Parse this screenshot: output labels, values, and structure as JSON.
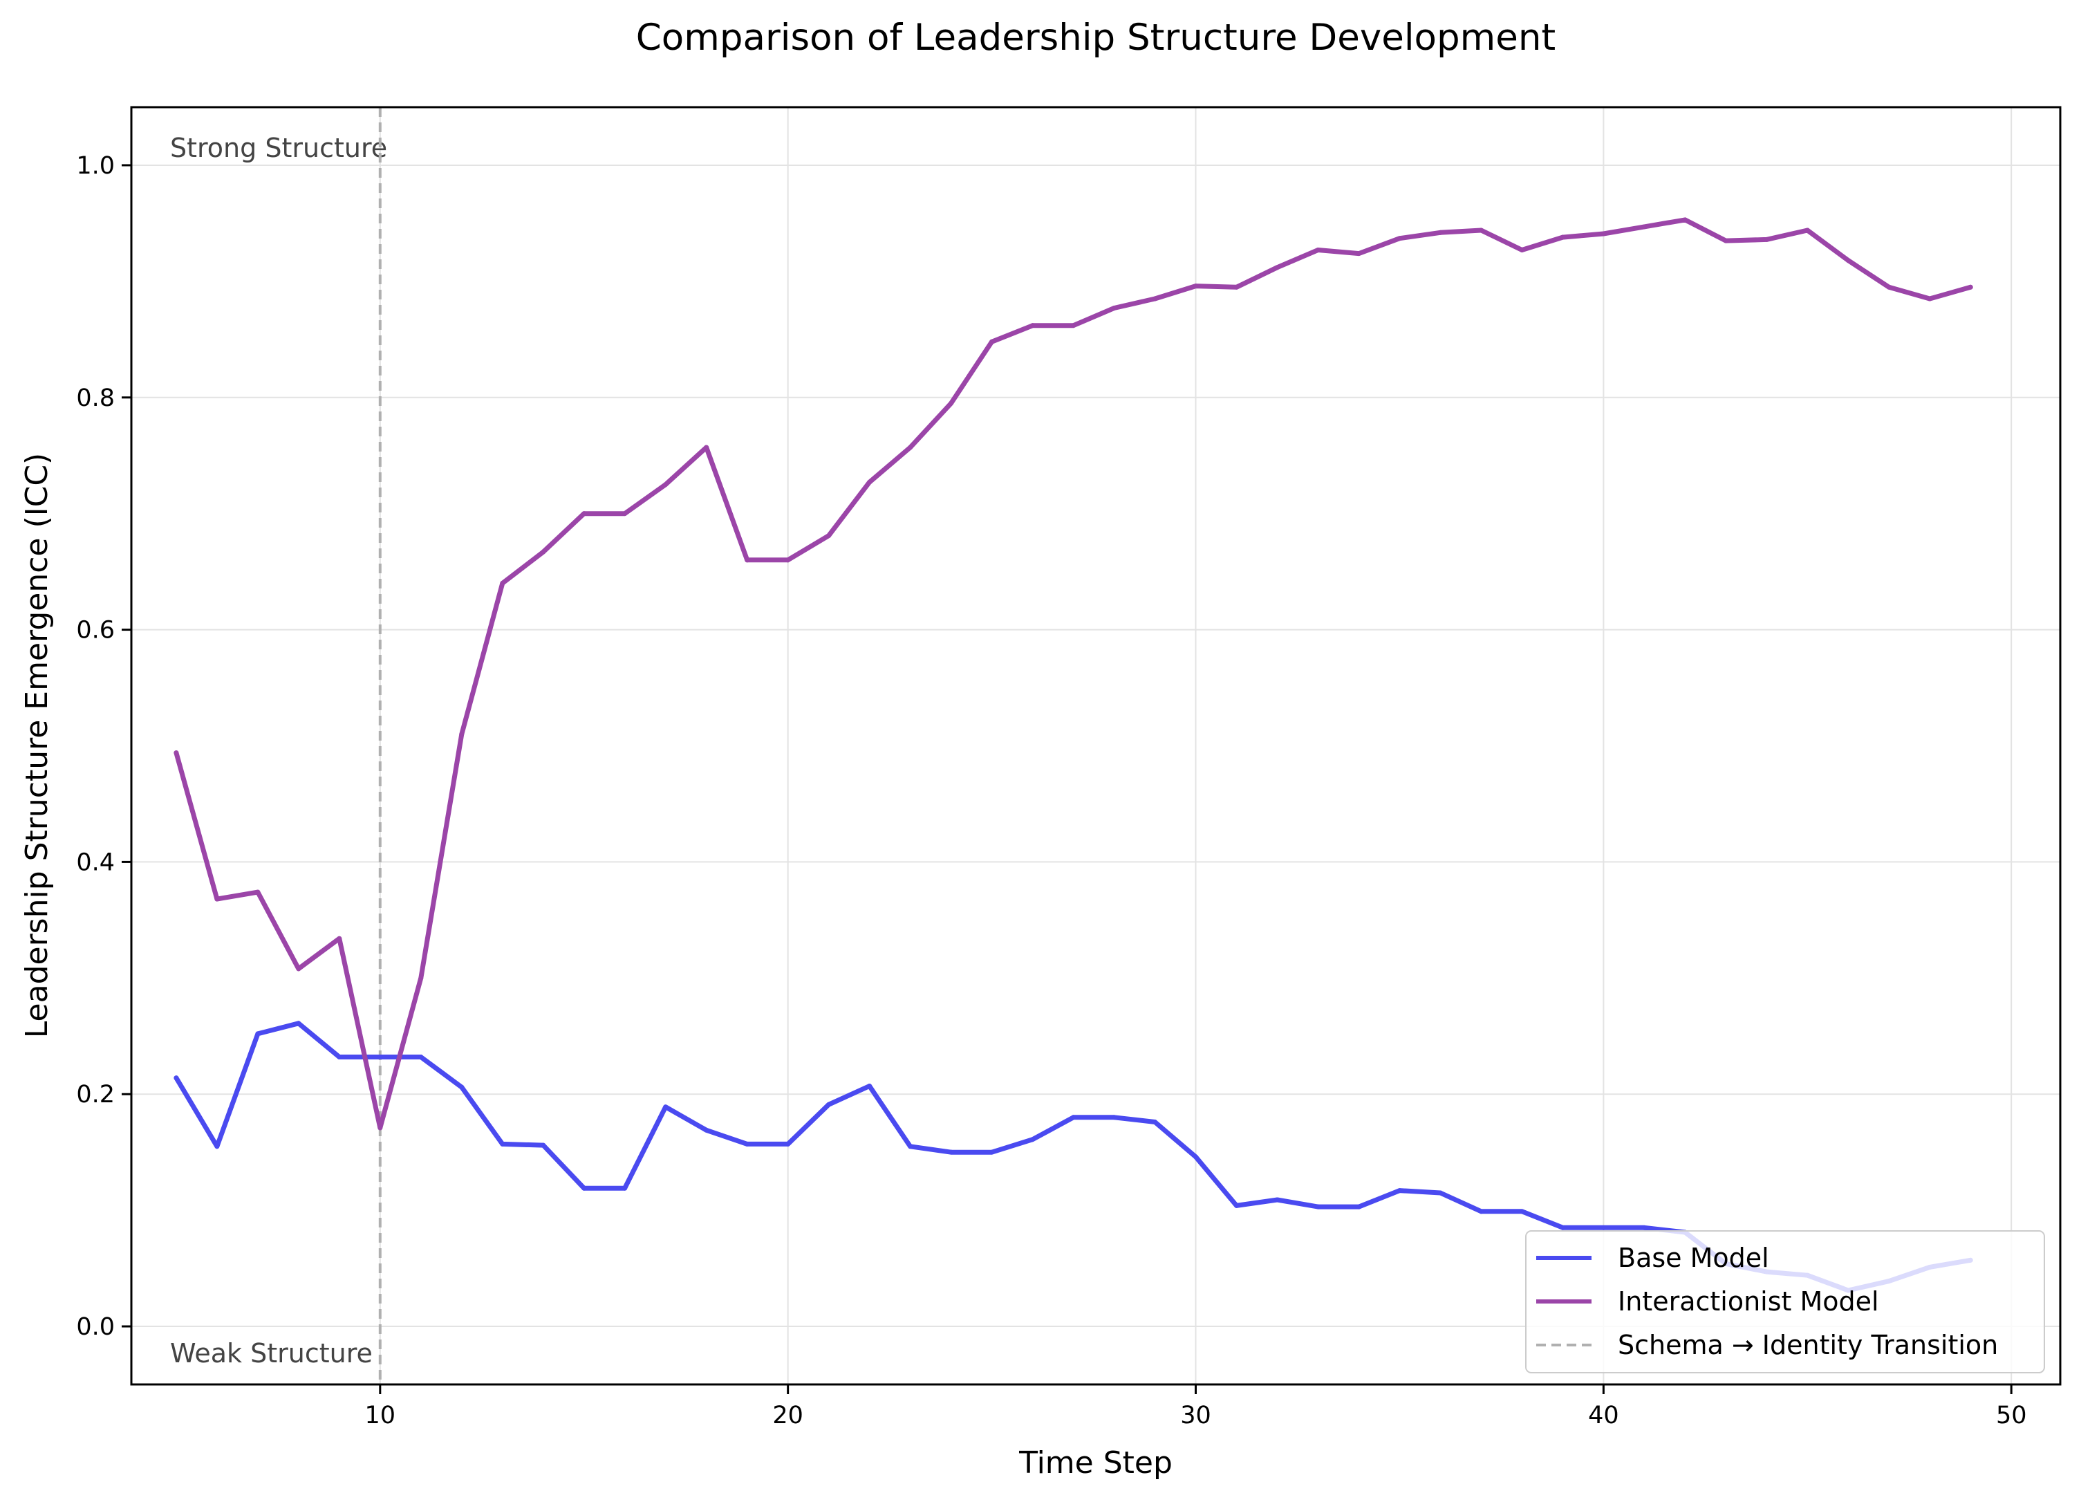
{
  "chart_data": {
    "type": "line",
    "title": "Comparison of Leadership Structure Development",
    "xlabel": "Time Step",
    "ylabel": "Leadership Structure Emergence (ICC)",
    "xlim": [
      3.9,
      51.2
    ],
    "ylim": [
      -0.05,
      1.05
    ],
    "xticks": [
      10,
      20,
      30,
      40,
      50
    ],
    "xtick_labels": [
      "10",
      "20",
      "30",
      "40",
      "50"
    ],
    "yticks": [
      0.0,
      0.2,
      0.4,
      0.6,
      0.8,
      1.0
    ],
    "ytick_labels": [
      "0.0",
      "0.2",
      "0.4",
      "0.6",
      "0.8",
      "1.0"
    ],
    "grid": true,
    "legend_position": "lower-right",
    "x": [
      5,
      6,
      7,
      8,
      9,
      10,
      11,
      12,
      13,
      14,
      15,
      16,
      17,
      18,
      19,
      20,
      21,
      22,
      23,
      24,
      25,
      26,
      27,
      28,
      29,
      30,
      31,
      32,
      33,
      34,
      35,
      36,
      37,
      38,
      39,
      40,
      41,
      42,
      43,
      44,
      45,
      46,
      47,
      48,
      49
    ],
    "series": [
      {
        "name": "Base Model",
        "color": "#4a4af0",
        "values": [
          0.214,
          0.155,
          0.252,
          0.261,
          0.232,
          0.232,
          0.232,
          0.206,
          0.157,
          0.156,
          0.119,
          0.119,
          0.189,
          0.169,
          0.157,
          0.157,
          0.191,
          0.207,
          0.155,
          0.15,
          0.15,
          0.161,
          0.18,
          0.18,
          0.176,
          0.146,
          0.104,
          0.109,
          0.103,
          0.103,
          0.117,
          0.115,
          0.099,
          0.099,
          0.085,
          0.085,
          0.085,
          0.081,
          0.054,
          0.047,
          0.044,
          0.031,
          0.039,
          0.051,
          0.057
        ]
      },
      {
        "name": "Interactionist Model",
        "color": "#9b45a8",
        "values": [
          0.494,
          0.368,
          0.374,
          0.308,
          0.334,
          0.171,
          0.3,
          0.51,
          0.64,
          0.667,
          0.7,
          0.7,
          0.725,
          0.757,
          0.66,
          0.66,
          0.681,
          0.727,
          0.757,
          0.795,
          0.848,
          0.862,
          0.862,
          0.877,
          0.885,
          0.896,
          0.895,
          0.912,
          0.927,
          0.924,
          0.937,
          0.942,
          0.944,
          0.927,
          0.938,
          0.941,
          0.947,
          0.953,
          0.935,
          0.936,
          0.944,
          0.918,
          0.895,
          0.885,
          0.895
        ]
      }
    ],
    "vline": {
      "x": 10,
      "name": "Schema → Identity Transition",
      "color": "#b0b0b0"
    },
    "annotations": {
      "top": "Strong Structure",
      "bottom": "Weak Structure"
    }
  }
}
